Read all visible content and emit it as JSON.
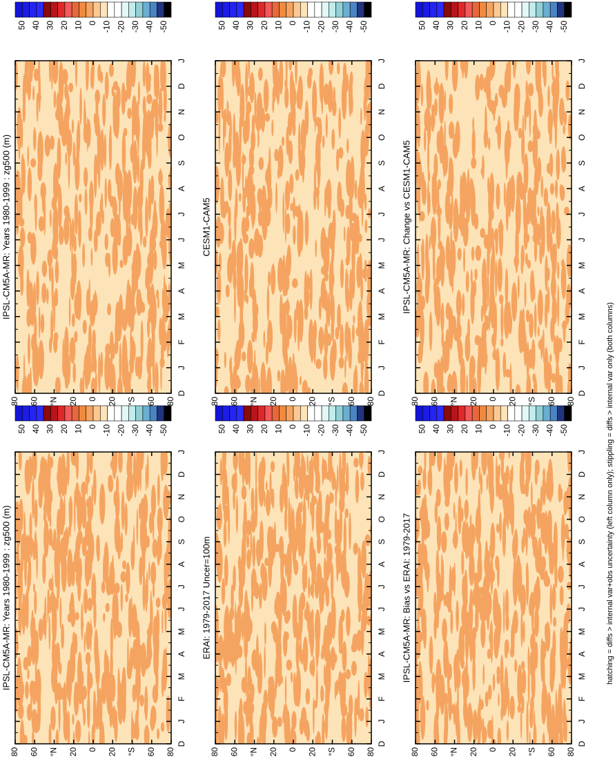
{
  "panels": [
    {
      "title": "IPSL-CM5A-MR: Years 1980-1999 : zg500 (m)"
    },
    {
      "title": "IPSL-CM5A-MR: Years 1980-1999 : zg500 (m)"
    },
    {
      "title": "ERAI: 1979-2017 Uncer=100m"
    },
    {
      "title": "CESM1-CAM5"
    },
    {
      "title": "IPSL-CM5A-MR: Bias vs ERAI: 1979-2017"
    },
    {
      "title": "IPSL-CM5A-MR: Change vs CESM1-CAM5"
    }
  ],
  "month_labels": [
    "D",
    "J",
    "F",
    "M",
    "A",
    "M",
    "J",
    "J",
    "A",
    "S",
    "O",
    "N",
    "D",
    "J"
  ],
  "lat_labels": [
    "80",
    "60",
    "°N",
    "20",
    "0",
    "20",
    "°S",
    "60",
    "80"
  ],
  "colorbar": {
    "ticks": [
      50,
      40,
      30,
      20,
      10,
      0,
      -10,
      -20,
      -30,
      -40,
      -50
    ],
    "colors": [
      "#1414d8",
      "#1c1ce6",
      "#2424f0",
      "#2c2cfa",
      "#8b0a0a",
      "#b8141e",
      "#e02828",
      "#f05a5a",
      "#e8683a",
      "#f08a40",
      "#f4a460",
      "#fcc890",
      "#fde3b8",
      "#ffffff",
      "#ffffff",
      "#e2f8f8",
      "#c2ecec",
      "#90d0d6",
      "#6aaed0",
      "#4a84c2",
      "#22347e",
      "#000000"
    ]
  },
  "caption": "hatching = diffs > internal var+obs uncertainty (left column only); stippling = diffs > internal var only (both columns)"
}
